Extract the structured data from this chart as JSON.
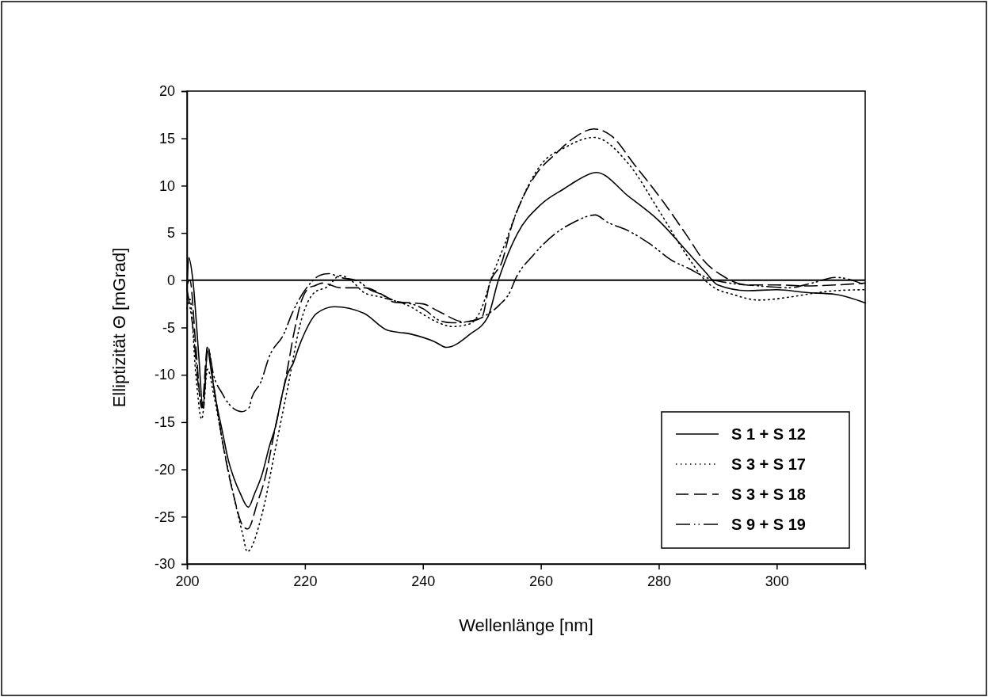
{
  "chart_data": {
    "type": "line",
    "xlabel": "Wellenlänge [nm]",
    "ylabel": "Elliptizität Θ [mGrad]",
    "xlim": [
      200,
      315
    ],
    "xticks": [
      200,
      220,
      240,
      260,
      280,
      300
    ],
    "ylim": [
      -30,
      20
    ],
    "yticks": [
      -30,
      -25,
      -20,
      -15,
      -10,
      -5,
      0,
      5,
      10,
      15,
      20
    ],
    "legend": "bottom right",
    "marker": "none",
    "ref_lines": [
      {
        "axis": "y",
        "value": 0,
        "color": "#000000"
      }
    ],
    "series": [
      {
        "name": "S 1 + S 12",
        "color": "#000000",
        "line_style": "solid",
        "x": [
          200,
          200.3,
          201,
          202,
          202.7,
          203.5,
          204.2,
          205,
          206,
          207,
          208,
          209,
          210.4,
          211.5,
          212.7,
          214,
          215,
          216,
          217,
          218,
          219,
          220,
          222,
          225,
          230,
          234,
          238,
          242,
          244,
          248,
          251,
          252.8,
          254,
          256,
          260,
          264,
          266,
          269.4,
          275,
          280,
          285,
          288,
          290,
          295,
          300,
          305,
          310,
          315
        ],
        "values": [
          -1,
          2.4,
          0,
          -8,
          -13.5,
          -7.5,
          -10,
          -13,
          -16,
          -19,
          -21,
          -22.5,
          -24,
          -22.5,
          -20.6,
          -17.5,
          -15.5,
          -12.5,
          -10,
          -8.8,
          -7,
          -5.5,
          -3.5,
          -2.8,
          -3.5,
          -5.3,
          -5.7,
          -6.5,
          -7.1,
          -5.7,
          -3.9,
          0,
          2.1,
          4.9,
          8,
          9.7,
          10.5,
          11.4,
          8.8,
          6.3,
          2.9,
          0.8,
          -0.5,
          -1.1,
          -1,
          -1.3,
          -1.5,
          -2.4
        ]
      },
      {
        "name": "S 3 + S 17",
        "color": "#000000",
        "line_style": "dotted",
        "x": [
          200,
          200.5,
          201.5,
          202.5,
          203.5,
          204.5,
          206,
          208,
          209.5,
          210.2,
          212.7,
          215,
          217.1,
          219.3,
          221.6,
          223.8,
          226,
          228,
          230,
          233,
          238.2,
          240,
          242.7,
          245,
          248,
          250,
          251.5,
          254,
          256,
          260,
          264,
          269,
          275,
          280,
          285,
          288,
          290,
          292,
          297,
          302,
          306,
          310,
          315
        ],
        "values": [
          -3,
          -2,
          -10,
          -14.7,
          -9.4,
          -12,
          -17,
          -23,
          -27,
          -28.7,
          -24.8,
          -17.8,
          -11.3,
          -4.4,
          -1.3,
          -0.7,
          0.5,
          -0.1,
          -1.3,
          -1.8,
          -2.9,
          -3.6,
          -4.5,
          -4.9,
          -4.6,
          -2.9,
          0,
          4,
          7.4,
          12.2,
          14,
          15.1,
          12.2,
          7.4,
          2.4,
          -0.1,
          -1,
          -1.4,
          -2.1,
          -1.8,
          -1.4,
          -1.1,
          -1
        ]
      },
      {
        "name": "S 3 + S 18",
        "color": "#000000",
        "line_style": "dashed",
        "x": [
          200,
          200.5,
          201.5,
          202.5,
          203.5,
          204.5,
          206,
          208,
          209.5,
          210.3,
          212,
          213,
          215,
          217,
          218.1,
          219.3,
          220.7,
          221.6,
          223,
          226,
          230,
          236,
          240,
          242.7,
          247,
          250,
          251.3,
          253.5,
          254.8,
          257,
          259.3,
          262.4,
          265.5,
          269,
          271.9,
          275.9,
          280.4,
          284.9,
          287.6,
          291,
          295,
          300,
          305,
          310,
          315
        ],
        "values": [
          -0.5,
          0,
          -7,
          -13.5,
          -7,
          -11,
          -17,
          -23,
          -26,
          -26.3,
          -23.4,
          -21.5,
          -15.5,
          -9.5,
          -5.7,
          -2.4,
          -0.8,
          -0.6,
          -0.3,
          -0.8,
          -0.8,
          -2.3,
          -2.5,
          -3.3,
          -4.4,
          -3.9,
          -0.4,
          2.1,
          5.2,
          8.8,
          11.3,
          13.3,
          15,
          16,
          15.3,
          12.2,
          8.6,
          4.6,
          2.1,
          0.4,
          -0.5,
          -0.5,
          -0.6,
          -0.5,
          -0.3
        ]
      },
      {
        "name": "S 9 + S 19",
        "color": "#000000",
        "line_style": "dashdotdot",
        "x": [
          200,
          201,
          202,
          202.8,
          203.5,
          204.5,
          206,
          207,
          209.3,
          210.5,
          211,
          212.5,
          214,
          216.4,
          217.9,
          220.3,
          222.5,
          224,
          226,
          229,
          231,
          233,
          235,
          238,
          240,
          243,
          245,
          248.5,
          250.7,
          253,
          254.8,
          255.6,
          258.8,
          262.4,
          265.5,
          269.2,
          271.4,
          274.6,
          278.6,
          282.2,
          284.9,
          288.4,
          292,
          297,
          302,
          306,
          310,
          315
        ],
        "values": [
          -1,
          -5,
          -11.5,
          -13.5,
          -7,
          -10,
          -12,
          -13,
          -13.9,
          -13.5,
          -12.4,
          -10.8,
          -8,
          -5.7,
          -3.4,
          -0.8,
          0.5,
          0.7,
          0.3,
          -0.1,
          -1,
          -1.5,
          -2.3,
          -2.5,
          -3,
          -4.3,
          -4.5,
          -4.3,
          -3.7,
          -2.6,
          -1.2,
          0,
          2.7,
          4.9,
          6.1,
          6.9,
          6.1,
          5.3,
          3.8,
          2.1,
          1.3,
          0.2,
          -0.3,
          -0.6,
          -0.8,
          -0.3,
          0.3,
          -0.5
        ]
      }
    ]
  }
}
